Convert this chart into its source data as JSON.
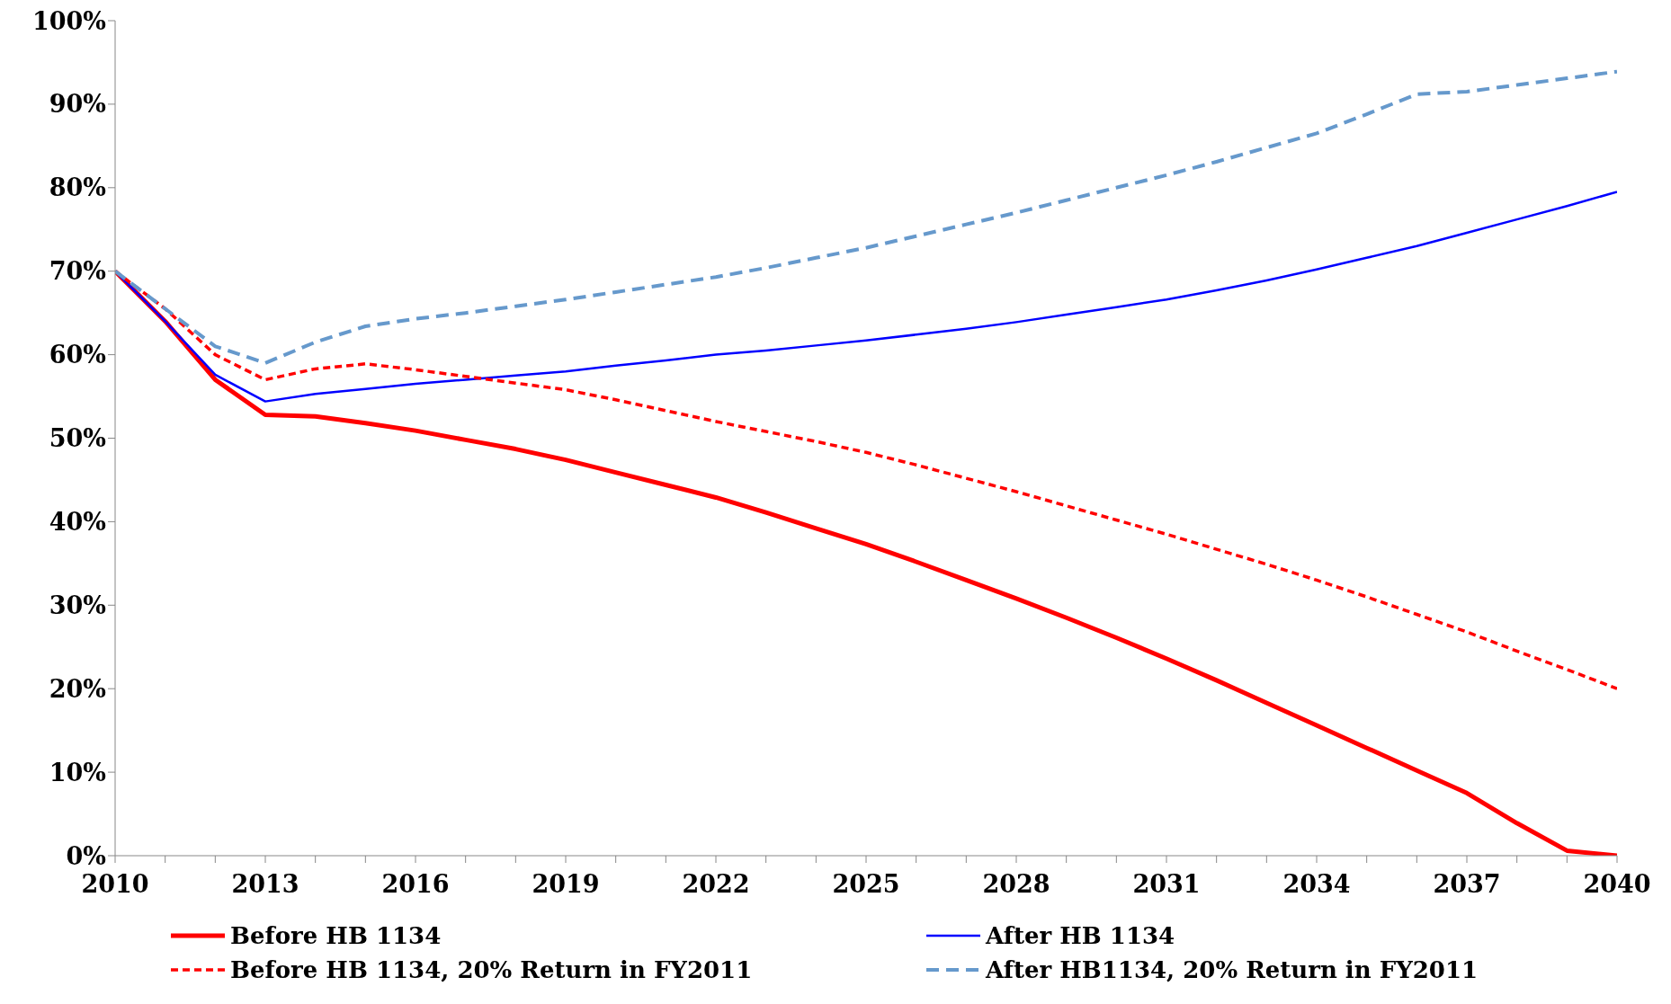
{
  "chart_data": {
    "type": "line",
    "x": [
      2010,
      2011,
      2012,
      2013,
      2014,
      2015,
      2016,
      2017,
      2018,
      2019,
      2020,
      2021,
      2022,
      2023,
      2024,
      2025,
      2026,
      2027,
      2028,
      2029,
      2030,
      2031,
      2032,
      2033,
      2034,
      2035,
      2036,
      2037,
      2038,
      2039,
      2040
    ],
    "xlim": [
      2010,
      2040
    ],
    "xticks": [
      2010,
      {
        "value": 2011,
        "label": null
      },
      {
        "value": 2012,
        "label": null
      },
      2013,
      {
        "value": 2014,
        "label": null
      },
      {
        "value": 2015,
        "label": null
      },
      2016,
      {
        "value": 2017,
        "label": null
      },
      {
        "value": 2018,
        "label": null
      },
      2019,
      {
        "value": 2020,
        "label": null
      },
      {
        "value": 2021,
        "label": null
      },
      2022,
      {
        "value": 2023,
        "label": null
      },
      {
        "value": 2024,
        "label": null
      },
      2025,
      {
        "value": 2026,
        "label": null
      },
      {
        "value": 2027,
        "label": null
      },
      2028,
      {
        "value": 2029,
        "label": null
      },
      {
        "value": 2030,
        "label": null
      },
      2031,
      {
        "value": 2032,
        "label": null
      },
      {
        "value": 2033,
        "label": null
      },
      2034,
      {
        "value": 2035,
        "label": null
      },
      {
        "value": 2036,
        "label": null
      },
      2037,
      {
        "value": 2038,
        "label": null
      },
      {
        "value": 2039,
        "label": null
      },
      2040
    ],
    "ylim": [
      0,
      100
    ],
    "yticks": [
      {
        "value": 0,
        "label": "0%"
      },
      {
        "value": 10,
        "label": "10%"
      },
      {
        "value": 20,
        "label": "20%"
      },
      {
        "value": 30,
        "label": "30%"
      },
      {
        "value": 40,
        "label": "40%"
      },
      {
        "value": 50,
        "label": "50%"
      },
      {
        "value": 60,
        "label": "60%"
      },
      {
        "value": 70,
        "label": "70%"
      },
      {
        "value": 80,
        "label": "80%"
      },
      {
        "value": 90,
        "label": "90%"
      },
      {
        "value": 100,
        "label": "100%"
      }
    ],
    "grid": false,
    "legend": "bottom",
    "marker": "none",
    "series": [
      {
        "name": "Before HB 1134",
        "color": "#ff0000",
        "line_style": "solid",
        "values": [
          70,
          64,
          57,
          52.8,
          52.6,
          51.8,
          50.9,
          49.8,
          48.7,
          47.4,
          45.9,
          44.4,
          42.9,
          41.1,
          39.2,
          37.3,
          35.2,
          33.0,
          30.8,
          28.5,
          26.1,
          23.6,
          21.0,
          18.3,
          15.6,
          12.9,
          10.2,
          7.5,
          3.9,
          0.6,
          0
        ]
      },
      {
        "name": "After HB 1134",
        "color": "#0000ff",
        "line_style": "solid",
        "values": [
          70,
          64,
          57.6,
          54.4,
          55.3,
          55.9,
          56.5,
          57.0,
          57.5,
          58.0,
          58.7,
          59.3,
          60.0,
          60.5,
          61.1,
          61.7,
          62.4,
          63.1,
          63.9,
          64.8,
          65.7,
          66.6,
          67.7,
          68.9,
          70.2,
          71.6,
          73.0,
          74.6,
          76.2,
          77.8,
          79.5
        ]
      },
      {
        "name": "Before HB 1134, 20% Return in FY2011",
        "color": "#ff0000",
        "line_style": "dashed",
        "values": [
          70,
          65.5,
          60,
          57,
          58.3,
          58.9,
          58.2,
          57.4,
          56.6,
          55.8,
          54.6,
          53.3,
          52.0,
          50.8,
          49.6,
          48.3,
          46.8,
          45.2,
          43.6,
          41.9,
          40.2,
          38.5,
          36.7,
          34.9,
          33.0,
          31.0,
          28.9,
          26.8,
          24.5,
          22.3,
          20
        ]
      },
      {
        "name": "After HB1134, 20% Return in FY2011",
        "color": "#6699cc",
        "line_style": "dashed",
        "values": [
          70,
          65.5,
          61,
          59,
          61.5,
          63.4,
          64.3,
          65.0,
          65.8,
          66.6,
          67.5,
          68.4,
          69.3,
          70.4,
          71.6,
          72.8,
          74.2,
          75.6,
          77.0,
          78.5,
          80.0,
          81.5,
          83.1,
          84.8,
          86.5,
          88.8,
          91.2,
          91.5,
          92.3,
          93.1,
          93.9
        ]
      }
    ]
  }
}
